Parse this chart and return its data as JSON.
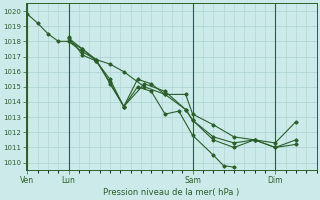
{
  "bg_color": "#cceaea",
  "grid_color": "#aad0d0",
  "line_color": "#2a5e2a",
  "marker_color": "#2a5e2a",
  "xlabel": "Pression niveau de la mer( hPa )",
  "xlabel_color": "#2a5e2a",
  "tick_color": "#2a5e2a",
  "spine_color": "#2a5e2a",
  "ylim": [
    1009.5,
    1020.5
  ],
  "yticks": [
    1010,
    1011,
    1012,
    1013,
    1014,
    1015,
    1016,
    1017,
    1018,
    1019,
    1020
  ],
  "xlim": [
    -0.5,
    84
  ],
  "xtick_labels": [
    "Ven",
    "Lun",
    "Sam",
    "Dim"
  ],
  "xtick_positions": [
    0,
    12,
    48,
    72
  ],
  "vline_positions": [
    0,
    12,
    48,
    72
  ],
  "lines": [
    [
      0,
      1019.8,
      3,
      1019.2,
      6,
      1018.5,
      9,
      1018.0,
      12,
      1018.0,
      16,
      1017.3,
      20,
      1016.8,
      24,
      1016.5,
      28,
      1016.0,
      34,
      1015.0,
      40,
      1014.5,
      46,
      1014.5,
      48,
      1013.2,
      54,
      1012.5,
      60,
      1011.7,
      66,
      1011.5,
      72,
      1011.3,
      78,
      1012.7
    ],
    [
      12,
      1018.0,
      16,
      1017.5,
      20,
      1016.8,
      24,
      1015.2,
      28,
      1013.7,
      32,
      1015.0,
      36,
      1014.7,
      40,
      1013.2,
      44,
      1013.4,
      48,
      1011.8,
      54,
      1010.5,
      57,
      1009.8,
      60,
      1009.7
    ],
    [
      12,
      1018.3,
      16,
      1017.1,
      20,
      1016.7,
      24,
      1015.3,
      28,
      1013.7,
      34,
      1015.2,
      40,
      1014.7,
      46,
      1013.5,
      48,
      1012.8,
      54,
      1011.7,
      60,
      1011.3,
      66,
      1011.5,
      72,
      1011.0,
      78,
      1011.2
    ],
    [
      12,
      1018.2,
      16,
      1017.5,
      20,
      1016.7,
      24,
      1015.5,
      28,
      1013.7,
      32,
      1015.5,
      36,
      1015.2,
      40,
      1014.5,
      46,
      1013.5,
      48,
      1012.8,
      54,
      1011.5,
      60,
      1011.0,
      66,
      1011.5,
      72,
      1011.0,
      78,
      1011.5
    ]
  ]
}
